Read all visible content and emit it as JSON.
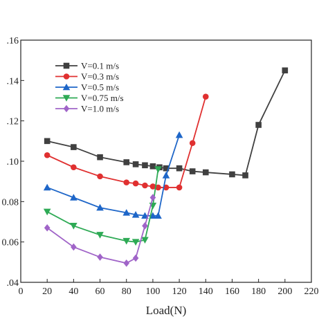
{
  "chart_data": {
    "type": "line",
    "xlabel": "Load(N)",
    "ylabel": "",
    "xlim": [
      0,
      220
    ],
    "ylim": [
      0.04,
      0.16
    ],
    "x_ticks": [
      "0",
      "20",
      "40",
      "60",
      "80",
      "100",
      "120",
      "140",
      "160",
      "180",
      "200",
      "220"
    ],
    "y_ticks": [
      ".04",
      "0.06",
      "0.08",
      ".10",
      ".12",
      ".14",
      ".16"
    ],
    "grid": false,
    "legend_position": "top-left",
    "series": [
      {
        "name": "V=0.1 m/s",
        "color": "#404040",
        "marker": "square",
        "x": [
          20,
          40,
          60,
          80,
          87,
          94,
          100,
          105,
          110,
          120,
          130,
          140,
          160,
          170,
          180,
          200
        ],
        "y": [
          0.11,
          0.107,
          0.102,
          0.0995,
          0.0985,
          0.098,
          0.0975,
          0.097,
          0.0965,
          0.0965,
          0.095,
          0.0945,
          0.0935,
          0.093,
          0.118,
          0.145
        ]
      },
      {
        "name": "V=0.3 m/s",
        "color": "#e03030",
        "marker": "circle",
        "x": [
          20,
          40,
          60,
          80,
          87,
          94,
          100,
          104,
          110,
          120,
          130,
          140
        ],
        "y": [
          0.103,
          0.097,
          0.0925,
          0.0895,
          0.089,
          0.088,
          0.0875,
          0.087,
          0.087,
          0.087,
          0.109,
          0.132
        ]
      },
      {
        "name": "V=0.5 m/s",
        "color": "#1e66c8",
        "marker": "triangle-up",
        "x": [
          20,
          40,
          60,
          80,
          87,
          94,
          100,
          104,
          110,
          120
        ],
        "y": [
          0.087,
          0.082,
          0.077,
          0.0745,
          0.0735,
          0.073,
          0.073,
          0.073,
          0.093,
          0.113
        ]
      },
      {
        "name": "V=0.75 m/s",
        "color": "#2eaa55",
        "marker": "triangle-down",
        "x": [
          20,
          40,
          60,
          80,
          87,
          94,
          100,
          104
        ],
        "y": [
          0.075,
          0.068,
          0.0635,
          0.0605,
          0.06,
          0.061,
          0.078,
          0.096
        ]
      },
      {
        "name": "V=1.0 m/s",
        "color": "#a064c8",
        "marker": "diamond",
        "x": [
          20,
          40,
          60,
          80,
          87,
          94,
          100
        ],
        "y": [
          0.067,
          0.0575,
          0.0525,
          0.0495,
          0.052,
          0.068,
          0.082
        ]
      }
    ]
  }
}
